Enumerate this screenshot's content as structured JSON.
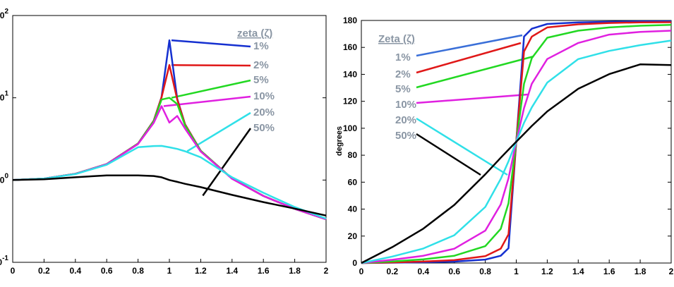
{
  "chart_data": [
    {
      "type": "line",
      "title": "",
      "xlabel": "",
      "ylabel": "",
      "yscale": "log",
      "xlim": [
        0,
        2
      ],
      "ylim": [
        0.1,
        100
      ],
      "x_ticks": [
        "0",
        "0.2",
        "0.4",
        "0.6",
        "0.8",
        "1",
        "1.2",
        "1.4",
        "1.6",
        "1.8",
        "2"
      ],
      "y_ticks": [
        {
          "base": "10",
          "exp": "-1"
        },
        {
          "base": "10",
          "exp": "0"
        },
        {
          "base": "10",
          "exp": "1"
        },
        {
          "base": "10",
          "exp": "2"
        }
      ],
      "legend_title": "zeta (ζ)",
      "x": [
        0,
        0.2,
        0.4,
        0.6,
        0.8,
        0.9,
        0.95,
        1.0,
        1.05,
        1.1,
        1.2,
        1.4,
        1.6,
        1.8,
        2.0
      ],
      "series": [
        {
          "name": "1%",
          "color": "#1530d0",
          "values": [
            1.0,
            1.042,
            1.19,
            1.562,
            2.777,
            5.262,
            10.22,
            50.0,
            9.74,
            4.76,
            2.272,
            1.041,
            0.641,
            0.446,
            0.333
          ]
        },
        {
          "name": "2%",
          "color": "#e01818",
          "values": [
            1.0,
            1.042,
            1.19,
            1.562,
            2.776,
            5.252,
            10.11,
            25.0,
            9.53,
            4.74,
            2.271,
            1.041,
            0.641,
            0.446,
            0.333
          ]
        },
        {
          "name": "5%",
          "color": "#22d822",
          "values": [
            1.0,
            1.042,
            1.19,
            1.562,
            2.767,
            5.181,
            9.52,
            10.0,
            8.4,
            4.6,
            2.259,
            1.04,
            0.641,
            0.446,
            0.333
          ]
        },
        {
          "name": "10%",
          "color": "#e020e0",
          "values": [
            1.0,
            1.042,
            1.189,
            1.56,
            2.736,
            4.96,
            7.91,
            5.0,
            6.02,
            4.22,
            2.223,
            1.036,
            0.64,
            0.446,
            0.333
          ]
        },
        {
          "name": "20%",
          "color": "#30e0e8",
          "values": [
            1.0,
            1.04,
            1.182,
            1.532,
            2.504,
            2.59,
            2.6,
            2.5,
            2.39,
            2.24,
            1.89,
            1.08,
            0.7,
            0.47,
            0.34
          ]
        },
        {
          "name": "50%",
          "color": "#000000",
          "values": [
            1.0,
            1.02,
            1.08,
            1.14,
            1.14,
            1.12,
            1.08,
            1.0,
            0.95,
            0.9,
            0.82,
            0.66,
            0.54,
            0.45,
            0.37
          ]
        }
      ]
    },
    {
      "type": "line",
      "title": "",
      "xlabel": "",
      "ylabel": "degrees",
      "xlim": [
        0,
        2
      ],
      "ylim": [
        0,
        180
      ],
      "x_ticks": [
        "0",
        "0.2",
        "0.4",
        "0.6",
        "0.8",
        "1",
        "1.2",
        "1.4",
        "1.6",
        "1.8",
        "2"
      ],
      "y_ticks": [
        "0",
        "20",
        "40",
        "60",
        "80",
        "100",
        "120",
        "140",
        "160",
        "180"
      ],
      "legend_title": "Zeta (ζ)",
      "x": [
        0,
        0.2,
        0.4,
        0.6,
        0.8,
        0.9,
        0.95,
        1.0,
        1.05,
        1.1,
        1.2,
        1.4,
        1.6,
        1.8,
        2.0
      ],
      "series": [
        {
          "name": "1%",
          "color": "#1530d0",
          "values": [
            0,
            0.24,
            0.55,
            1.07,
            2.55,
            5.4,
            11.0,
            90,
            168,
            173.9,
            177.4,
            178.6,
            179.0,
            179.3,
            179.3
          ]
        },
        {
          "name": "2%",
          "color": "#e01818",
          "values": [
            0,
            0.48,
            1.09,
            2.15,
            5.1,
            10.7,
            21.3,
            90,
            157,
            168,
            174.8,
            177.1,
            178.1,
            178.6,
            178.7
          ]
        },
        {
          "name": "5%",
          "color": "#22d822",
          "values": [
            0,
            1.2,
            2.7,
            5.4,
            12.5,
            25.3,
            44.3,
            90,
            133,
            152,
            167.2,
            172.4,
            174.8,
            176.1,
            176.7
          ]
        },
        {
          "name": "10%",
          "color": "#e020e0",
          "values": [
            0,
            2.4,
            5.4,
            10.6,
            24.0,
            43.5,
            62.9,
            90,
            115,
            133,
            151.4,
            163.3,
            169.5,
            171.5,
            172.4
          ]
        },
        {
          "name": "20%",
          "color": "#30e0e8",
          "values": [
            0,
            4.8,
            10.8,
            20.6,
            41.6,
            62.4,
            75.5,
            90,
            104,
            115.5,
            133.9,
            151.3,
            157.4,
            161.7,
            165.1
          ]
        },
        {
          "name": "50%",
          "color": "#000000",
          "values": [
            0,
            11.8,
            25.5,
            43.1,
            65.8,
            78.1,
            84.1,
            90,
            95.8,
            101.7,
            112.5,
            129.3,
            140.2,
            147.4,
            146.9
          ]
        }
      ]
    }
  ]
}
